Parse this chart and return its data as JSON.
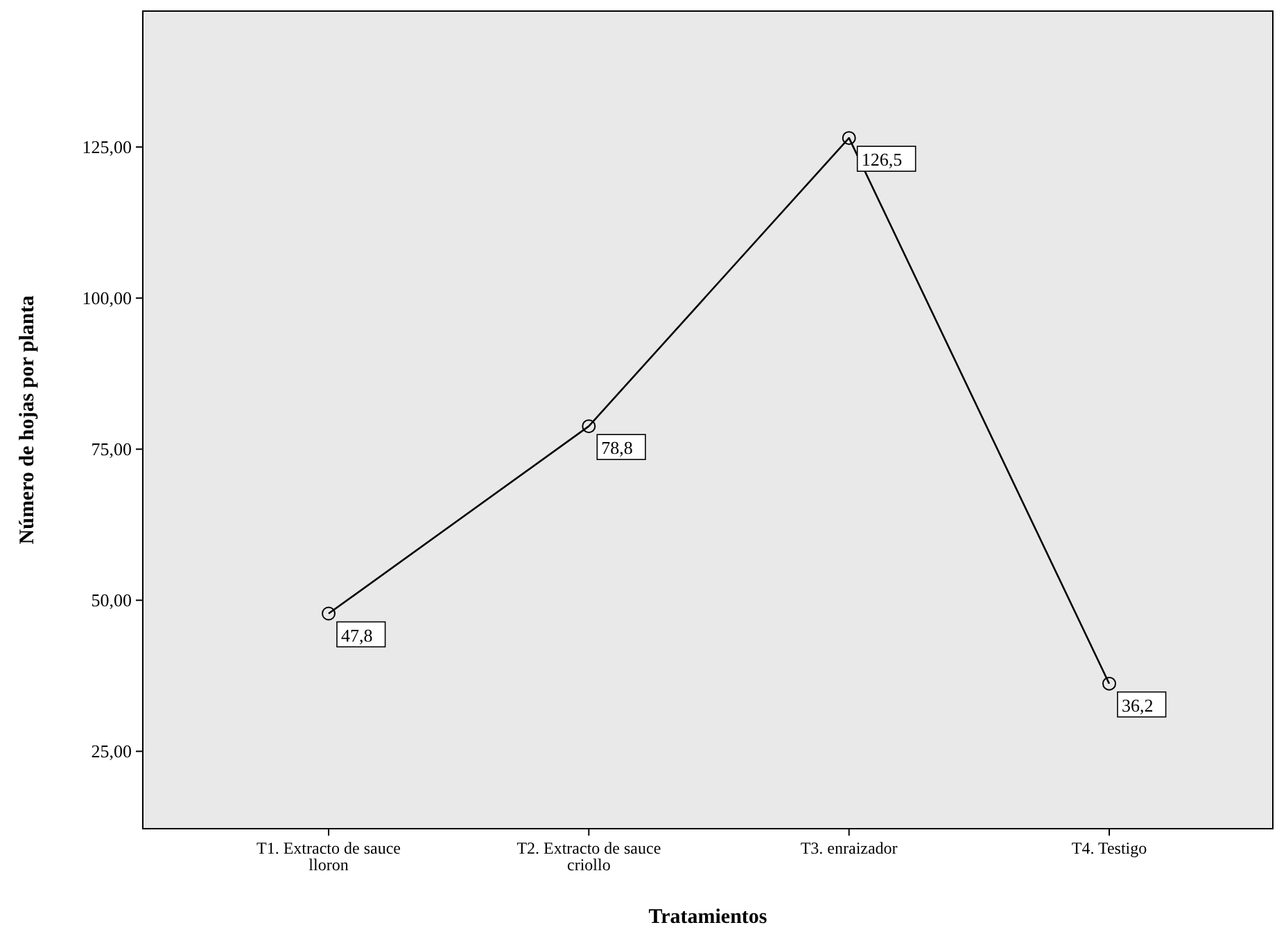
{
  "chart_data": {
    "type": "line",
    "xlabel": "Tratamientos",
    "ylabel": "Número de hojas por planta",
    "categories": [
      "T1. Extracto de sauce lloron",
      "T2. Extracto de sauce criollo",
      "T3. enraizador",
      "T4. Testigo"
    ],
    "values": [
      47.8,
      78.8,
      126.5,
      36.2
    ],
    "color": "#000000",
    "marker": "circle",
    "value_labels": [
      "47,8",
      "78,8",
      "126,5",
      "36,2"
    ],
    "ylim": [
      12.2,
      147.5
    ],
    "yticks": [
      {
        "value": 25,
        "label": "25,00"
      },
      {
        "value": 50,
        "label": "50,00"
      },
      {
        "value": 75,
        "label": "75,00"
      },
      {
        "value": 100,
        "label": "100,00"
      },
      {
        "value": 125,
        "label": "125,00"
      }
    ],
    "grid": false
  }
}
